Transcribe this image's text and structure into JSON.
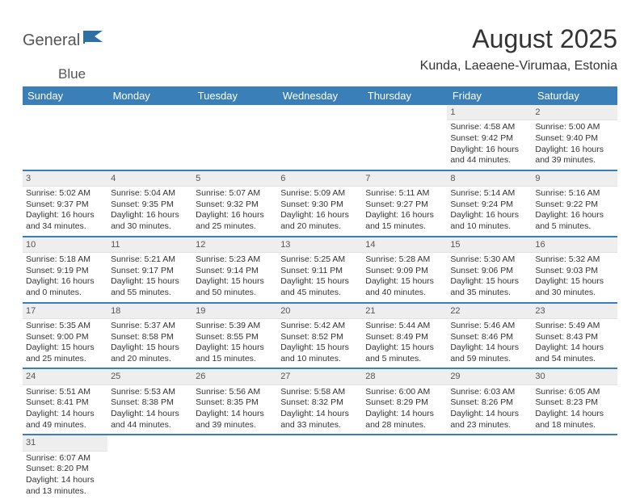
{
  "brand": {
    "name_a": "General",
    "name_b": "Blue"
  },
  "title": "August 2025",
  "location": "Kunda, Laeaene-Virumaa, Estonia",
  "colors": {
    "header_bg": "#3a7fb8",
    "header_fg": "#ffffff",
    "daybar_bg": "#eeeeee",
    "row_divider": "#3a7fb8",
    "page_bg": "#ffffff",
    "text": "#333333"
  },
  "typography": {
    "title_fontsize": 32,
    "location_fontsize": 16,
    "dayhead_fontsize": 13,
    "cell_fontsize": 10.5
  },
  "days": [
    "Sunday",
    "Monday",
    "Tuesday",
    "Wednesday",
    "Thursday",
    "Friday",
    "Saturday"
  ],
  "weeks": [
    [
      null,
      null,
      null,
      null,
      null,
      {
        "n": "1",
        "sr": "Sunrise: 4:58 AM",
        "ss": "Sunset: 9:42 PM",
        "d1": "Daylight: 16 hours",
        "d2": "and 44 minutes."
      },
      {
        "n": "2",
        "sr": "Sunrise: 5:00 AM",
        "ss": "Sunset: 9:40 PM",
        "d1": "Daylight: 16 hours",
        "d2": "and 39 minutes."
      }
    ],
    [
      {
        "n": "3",
        "sr": "Sunrise: 5:02 AM",
        "ss": "Sunset: 9:37 PM",
        "d1": "Daylight: 16 hours",
        "d2": "and 34 minutes."
      },
      {
        "n": "4",
        "sr": "Sunrise: 5:04 AM",
        "ss": "Sunset: 9:35 PM",
        "d1": "Daylight: 16 hours",
        "d2": "and 30 minutes."
      },
      {
        "n": "5",
        "sr": "Sunrise: 5:07 AM",
        "ss": "Sunset: 9:32 PM",
        "d1": "Daylight: 16 hours",
        "d2": "and 25 minutes."
      },
      {
        "n": "6",
        "sr": "Sunrise: 5:09 AM",
        "ss": "Sunset: 9:30 PM",
        "d1": "Daylight: 16 hours",
        "d2": "and 20 minutes."
      },
      {
        "n": "7",
        "sr": "Sunrise: 5:11 AM",
        "ss": "Sunset: 9:27 PM",
        "d1": "Daylight: 16 hours",
        "d2": "and 15 minutes."
      },
      {
        "n": "8",
        "sr": "Sunrise: 5:14 AM",
        "ss": "Sunset: 9:24 PM",
        "d1": "Daylight: 16 hours",
        "d2": "and 10 minutes."
      },
      {
        "n": "9",
        "sr": "Sunrise: 5:16 AM",
        "ss": "Sunset: 9:22 PM",
        "d1": "Daylight: 16 hours",
        "d2": "and 5 minutes."
      }
    ],
    [
      {
        "n": "10",
        "sr": "Sunrise: 5:18 AM",
        "ss": "Sunset: 9:19 PM",
        "d1": "Daylight: 16 hours",
        "d2": "and 0 minutes."
      },
      {
        "n": "11",
        "sr": "Sunrise: 5:21 AM",
        "ss": "Sunset: 9:17 PM",
        "d1": "Daylight: 15 hours",
        "d2": "and 55 minutes."
      },
      {
        "n": "12",
        "sr": "Sunrise: 5:23 AM",
        "ss": "Sunset: 9:14 PM",
        "d1": "Daylight: 15 hours",
        "d2": "and 50 minutes."
      },
      {
        "n": "13",
        "sr": "Sunrise: 5:25 AM",
        "ss": "Sunset: 9:11 PM",
        "d1": "Daylight: 15 hours",
        "d2": "and 45 minutes."
      },
      {
        "n": "14",
        "sr": "Sunrise: 5:28 AM",
        "ss": "Sunset: 9:09 PM",
        "d1": "Daylight: 15 hours",
        "d2": "and 40 minutes."
      },
      {
        "n": "15",
        "sr": "Sunrise: 5:30 AM",
        "ss": "Sunset: 9:06 PM",
        "d1": "Daylight: 15 hours",
        "d2": "and 35 minutes."
      },
      {
        "n": "16",
        "sr": "Sunrise: 5:32 AM",
        "ss": "Sunset: 9:03 PM",
        "d1": "Daylight: 15 hours",
        "d2": "and 30 minutes."
      }
    ],
    [
      {
        "n": "17",
        "sr": "Sunrise: 5:35 AM",
        "ss": "Sunset: 9:00 PM",
        "d1": "Daylight: 15 hours",
        "d2": "and 25 minutes."
      },
      {
        "n": "18",
        "sr": "Sunrise: 5:37 AM",
        "ss": "Sunset: 8:58 PM",
        "d1": "Daylight: 15 hours",
        "d2": "and 20 minutes."
      },
      {
        "n": "19",
        "sr": "Sunrise: 5:39 AM",
        "ss": "Sunset: 8:55 PM",
        "d1": "Daylight: 15 hours",
        "d2": "and 15 minutes."
      },
      {
        "n": "20",
        "sr": "Sunrise: 5:42 AM",
        "ss": "Sunset: 8:52 PM",
        "d1": "Daylight: 15 hours",
        "d2": "and 10 minutes."
      },
      {
        "n": "21",
        "sr": "Sunrise: 5:44 AM",
        "ss": "Sunset: 8:49 PM",
        "d1": "Daylight: 15 hours",
        "d2": "and 5 minutes."
      },
      {
        "n": "22",
        "sr": "Sunrise: 5:46 AM",
        "ss": "Sunset: 8:46 PM",
        "d1": "Daylight: 14 hours",
        "d2": "and 59 minutes."
      },
      {
        "n": "23",
        "sr": "Sunrise: 5:49 AM",
        "ss": "Sunset: 8:43 PM",
        "d1": "Daylight: 14 hours",
        "d2": "and 54 minutes."
      }
    ],
    [
      {
        "n": "24",
        "sr": "Sunrise: 5:51 AM",
        "ss": "Sunset: 8:41 PM",
        "d1": "Daylight: 14 hours",
        "d2": "and 49 minutes."
      },
      {
        "n": "25",
        "sr": "Sunrise: 5:53 AM",
        "ss": "Sunset: 8:38 PM",
        "d1": "Daylight: 14 hours",
        "d2": "and 44 minutes."
      },
      {
        "n": "26",
        "sr": "Sunrise: 5:56 AM",
        "ss": "Sunset: 8:35 PM",
        "d1": "Daylight: 14 hours",
        "d2": "and 39 minutes."
      },
      {
        "n": "27",
        "sr": "Sunrise: 5:58 AM",
        "ss": "Sunset: 8:32 PM",
        "d1": "Daylight: 14 hours",
        "d2": "and 33 minutes."
      },
      {
        "n": "28",
        "sr": "Sunrise: 6:00 AM",
        "ss": "Sunset: 8:29 PM",
        "d1": "Daylight: 14 hours",
        "d2": "and 28 minutes."
      },
      {
        "n": "29",
        "sr": "Sunrise: 6:03 AM",
        "ss": "Sunset: 8:26 PM",
        "d1": "Daylight: 14 hours",
        "d2": "and 23 minutes."
      },
      {
        "n": "30",
        "sr": "Sunrise: 6:05 AM",
        "ss": "Sunset: 8:23 PM",
        "d1": "Daylight: 14 hours",
        "d2": "and 18 minutes."
      }
    ],
    [
      {
        "n": "31",
        "sr": "Sunrise: 6:07 AM",
        "ss": "Sunset: 8:20 PM",
        "d1": "Daylight: 14 hours",
        "d2": "and 13 minutes."
      },
      null,
      null,
      null,
      null,
      null,
      null
    ]
  ]
}
